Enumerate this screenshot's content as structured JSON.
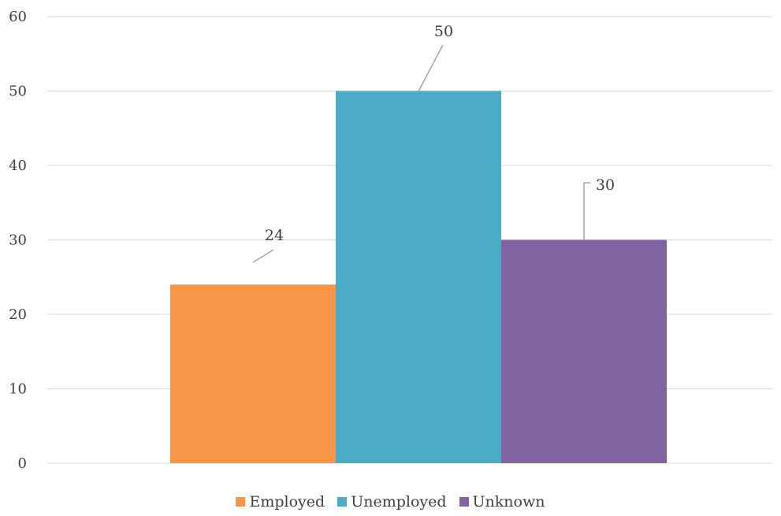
{
  "chart_data": {
    "type": "bar",
    "title": "",
    "xlabel": "",
    "ylabel": "",
    "categories": [
      ""
    ],
    "series": [
      {
        "name": "Employed",
        "values": [
          24
        ],
        "color": "#F79646"
      },
      {
        "name": "Unemployed",
        "values": [
          50
        ],
        "color": "#4BACC6"
      },
      {
        "name": "Unknown",
        "values": [
          30
        ],
        "color": "#8064A2"
      }
    ],
    "ylim": [
      0,
      60
    ],
    "yticks": [
      "0",
      "10",
      "20",
      "30",
      "40",
      "50",
      "60"
    ],
    "data_labels": [
      "24",
      "50",
      "30"
    ],
    "grid": true,
    "legend_position": "bottom"
  }
}
